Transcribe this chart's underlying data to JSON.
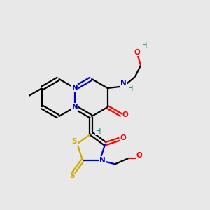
{
  "bg": "#e8e8e8",
  "C": "#000000",
  "N": "#0000cc",
  "O": "#ff0000",
  "S": "#ccaa00",
  "H": "#008080",
  "lw": 1.6,
  "fs": 7.5
}
